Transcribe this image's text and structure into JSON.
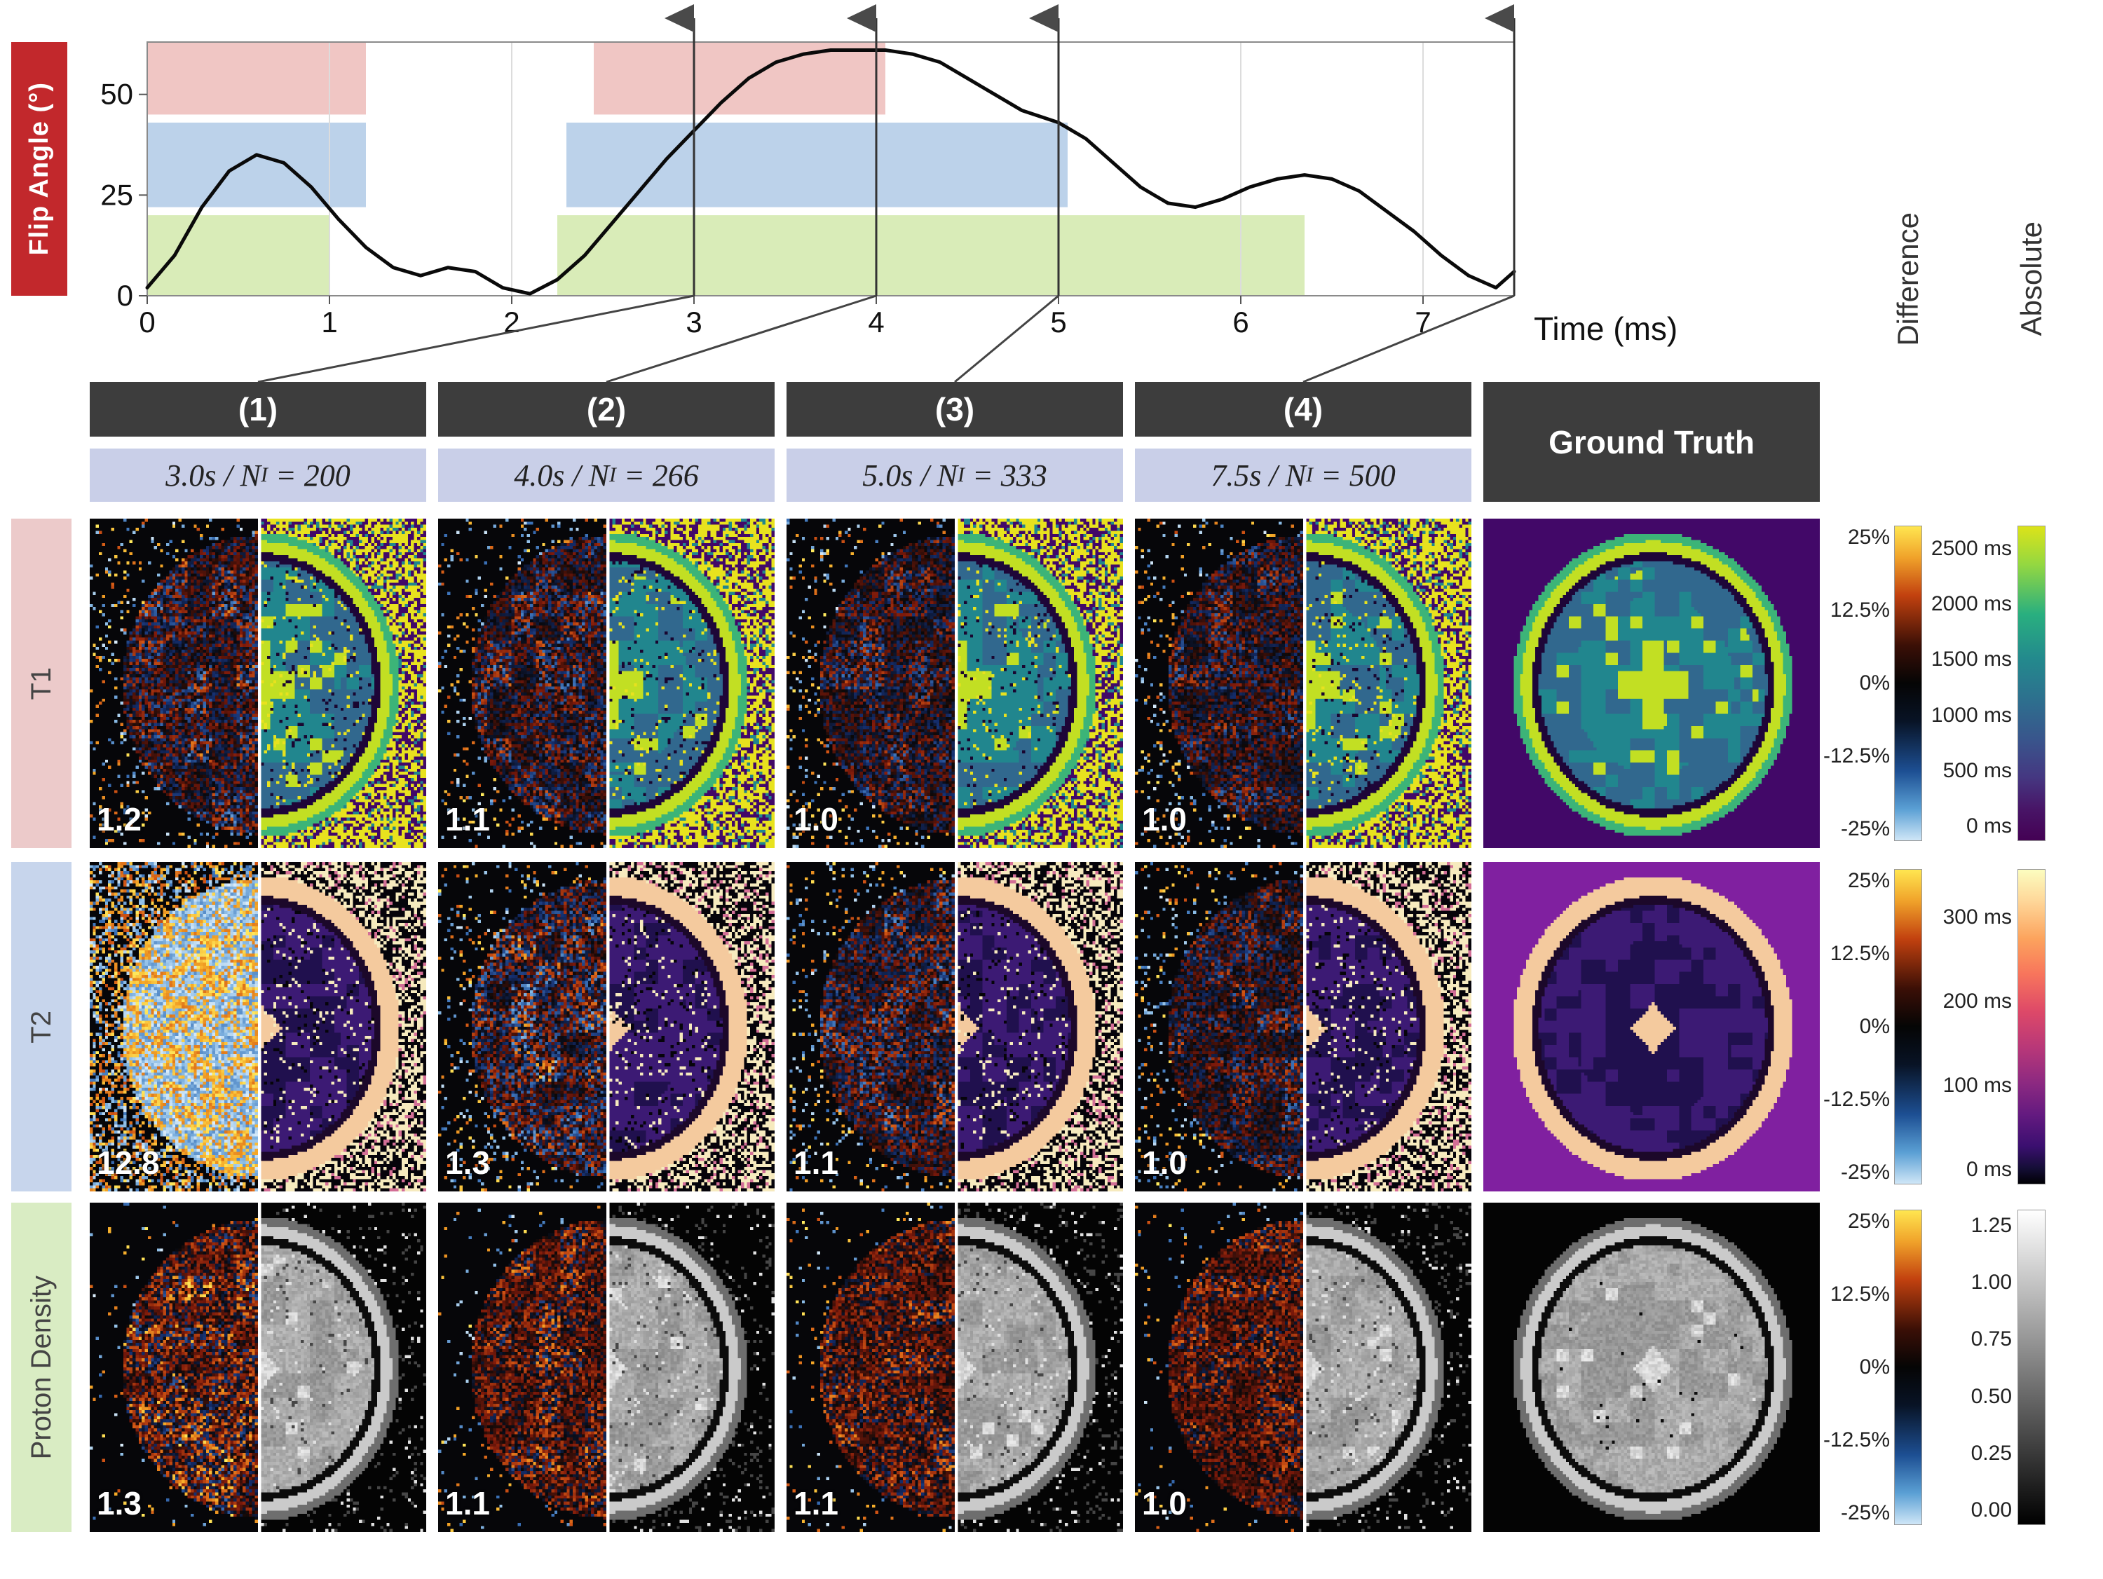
{
  "chart": {
    "ylabel": "Flip Angle (°)",
    "xlabel": "Time (ms)"
  },
  "chart_data": {
    "type": "line",
    "title": "",
    "xlabel": "Time (ms)",
    "ylabel": "Flip Angle (°)",
    "xlim": [
      0,
      7.5
    ],
    "ylim": [
      0,
      63
    ],
    "xticks": [
      0,
      1,
      2,
      3,
      4,
      5,
      6,
      7
    ],
    "yticks": [
      0,
      25,
      50
    ],
    "grid": "vertical-only",
    "legend": "none",
    "series": [
      {
        "name": "flip-angle-train",
        "x": [
          0,
          0.15,
          0.3,
          0.45,
          0.6,
          0.75,
          0.9,
          1.05,
          1.2,
          1.35,
          1.5,
          1.65,
          1.8,
          1.95,
          2.1,
          2.25,
          2.4,
          2.55,
          2.7,
          2.85,
          3.0,
          3.15,
          3.3,
          3.45,
          3.6,
          3.75,
          3.9,
          4.05,
          4.2,
          4.35,
          4.5,
          4.65,
          4.8,
          5.0,
          5.15,
          5.3,
          5.45,
          5.6,
          5.75,
          5.9,
          6.05,
          6.2,
          6.35,
          6.5,
          6.65,
          6.8,
          6.95,
          7.1,
          7.25,
          7.4,
          7.5
        ],
        "y": [
          2,
          10,
          22,
          31,
          35,
          33,
          27,
          19,
          12,
          7,
          5,
          7,
          6,
          2,
          0.5,
          4,
          10,
          18,
          26,
          34,
          41,
          48,
          54,
          58,
          60,
          61,
          61,
          61,
          60,
          58,
          54,
          50,
          46,
          43,
          39,
          33,
          27,
          23,
          22,
          24,
          27,
          29,
          30,
          29,
          26,
          21,
          16,
          10,
          5,
          2,
          6
        ]
      }
    ],
    "regions": [
      {
        "name": "acquisition-block-red",
        "color": "#f0c6c4",
        "y": [
          45,
          63
        ],
        "spans": [
          [
            0,
            1.2
          ],
          [
            2.45,
            4.05
          ]
        ]
      },
      {
        "name": "acquisition-block-blue",
        "color": "#bcd2ea",
        "y": [
          22,
          43
        ],
        "spans": [
          [
            0,
            1.2
          ],
          [
            2.3,
            5.05
          ]
        ]
      },
      {
        "name": "acquisition-block-green",
        "color": "#d9ecb8",
        "y": [
          0,
          20
        ],
        "spans": [
          [
            0,
            1.0
          ],
          [
            2.25,
            6.35
          ]
        ]
      }
    ],
    "markers": {
      "times": [
        3,
        4,
        5,
        7.5
      ],
      "labels": [
        "(1)",
        "(2)",
        "(3)",
        "(4)"
      ]
    }
  },
  "grid": {
    "columns": [
      {
        "label": "(1)",
        "duration": "3.0s",
        "count": "200"
      },
      {
        "label": "(2)",
        "duration": "4.0s",
        "count": "266"
      },
      {
        "label": "(3)",
        "duration": "5.0s",
        "count": "333"
      },
      {
        "label": "(4)",
        "duration": "7.5s",
        "count": "500"
      }
    ],
    "math": {
      "sep": " / ",
      "symbol": "N",
      "sub": "I",
      "eq": " = "
    },
    "ground_truth_label": "Ground Truth",
    "rows": [
      {
        "label": "T1",
        "metrics": [
          "1.2",
          "1.1",
          "1.0",
          "1.0"
        ]
      },
      {
        "label": "T2",
        "metrics": [
          "12.8",
          "1.3",
          "1.1",
          "1.0"
        ]
      },
      {
        "label": "Proton Density",
        "metrics": [
          "1.3",
          "1.1",
          "1.1",
          "1.0"
        ]
      }
    ]
  },
  "colorbars": {
    "difference_title": "Difference",
    "absolute_title": "Absolute",
    "diff_ticks": [
      "25%",
      "12.5%",
      "0%",
      "-12.5%",
      "-25%"
    ],
    "abs_ticks": {
      "t1": [
        "2500 ms",
        "2000 ms",
        "1500 ms",
        "1000 ms",
        "500 ms",
        "0 ms"
      ],
      "t2": [
        "300 ms",
        "200 ms",
        "100 ms",
        "0 ms"
      ],
      "pd": [
        "1.25",
        "1.00",
        "0.75",
        "0.50",
        "0.25",
        "0.00"
      ]
    }
  },
  "colors": {
    "flip_label_bg": "#c2282c",
    "header_bg": "#3d3d3d",
    "subheader_bg": "#c9cfe8",
    "row_t1_bg": "#eccaca",
    "row_t2_bg": "#c7d5ec",
    "row_pd_bg": "#d9ecc3",
    "region_red": "#f0c6c4",
    "region_blue": "#bcd2ea",
    "region_green": "#d9ecb8"
  }
}
